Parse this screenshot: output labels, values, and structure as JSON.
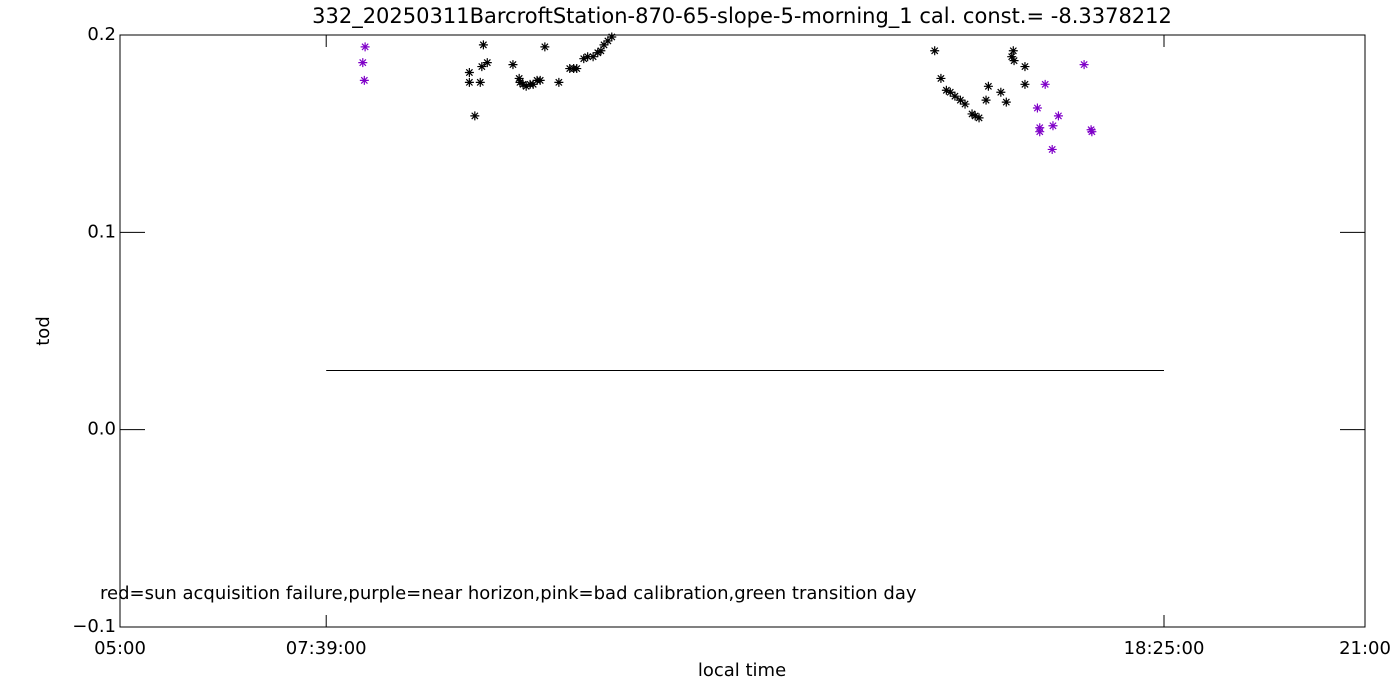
{
  "chart_data": {
    "type": "scatter",
    "title": "332_20250311BarcroftStation-870-65-slope-5-morning_1 cal. const.= -8.3378212",
    "xlabel": "local time",
    "ylabel": "tod",
    "annotation": "red=sun acquisition failure,purple=near horizon,pink=bad calibration,green transition day",
    "xlim": [
      5,
      21
    ],
    "ylim": [
      -0.1,
      0.2
    ],
    "xticks": [
      {
        "value": 5,
        "label": "05:00"
      },
      {
        "value": 7.65,
        "label": "07:39:00"
      },
      {
        "value": 18.4167,
        "label": "18:25:00"
      },
      {
        "value": 21,
        "label": "21:00"
      }
    ],
    "yticks": [
      {
        "value": -0.1,
        "label": "−0.1"
      },
      {
        "value": 0,
        "label": "0.0"
      },
      0.1,
      0.2
    ],
    "series": [
      {
        "color": "#000000",
        "marker": "asterisk",
        "x": [
          9.49,
          9.49,
          9.56,
          9.63,
          9.65,
          9.67,
          9.72,
          10.05,
          10.13,
          10.14,
          10.18,
          10.22,
          10.27,
          10.31,
          10.36,
          10.4,
          10.46,
          10.64,
          10.78,
          10.83,
          10.87,
          10.96,
          11.01,
          11.08,
          11.14,
          11.18,
          11.22,
          11.27,
          11.32,
          15.47,
          15.55,
          15.62,
          15.67,
          15.73,
          15.8,
          15.86,
          15.95,
          15.99,
          16.04,
          16.13,
          16.16,
          16.32,
          16.39,
          16.46,
          16.48,
          16.49,
          16.63,
          16.63
        ],
        "values": [
          0.181,
          0.176,
          0.159,
          0.176,
          0.184,
          0.195,
          0.186,
          0.185,
          0.178,
          0.176,
          0.175,
          0.174,
          0.175,
          0.175,
          0.177,
          0.177,
          0.194,
          0.176,
          0.183,
          0.183,
          0.183,
          0.188,
          0.189,
          0.189,
          0.191,
          0.192,
          0.195,
          0.197,
          0.199,
          0.192,
          0.178,
          0.172,
          0.171,
          0.169,
          0.167,
          0.165,
          0.16,
          0.159,
          0.158,
          0.167,
          0.174,
          0.171,
          0.166,
          0.189,
          0.192,
          0.187,
          0.184,
          0.175
        ]
      },
      {
        "color": "#7f00c8",
        "marker": "asterisk",
        "x": [
          8.12,
          8.15,
          8.14,
          16.79,
          16.82,
          16.82,
          16.89,
          16.98,
          16.99,
          17.06,
          17.39,
          17.48,
          17.49
        ],
        "values": [
          0.186,
          0.194,
          0.177,
          0.163,
          0.153,
          0.151,
          0.175,
          0.142,
          0.154,
          0.159,
          0.185,
          0.152,
          0.151
        ]
      },
      {
        "color": "#000000",
        "marker": "line",
        "x": [
          7.65,
          18.4167
        ],
        "values": [
          0.03,
          0.03
        ]
      }
    ]
  }
}
